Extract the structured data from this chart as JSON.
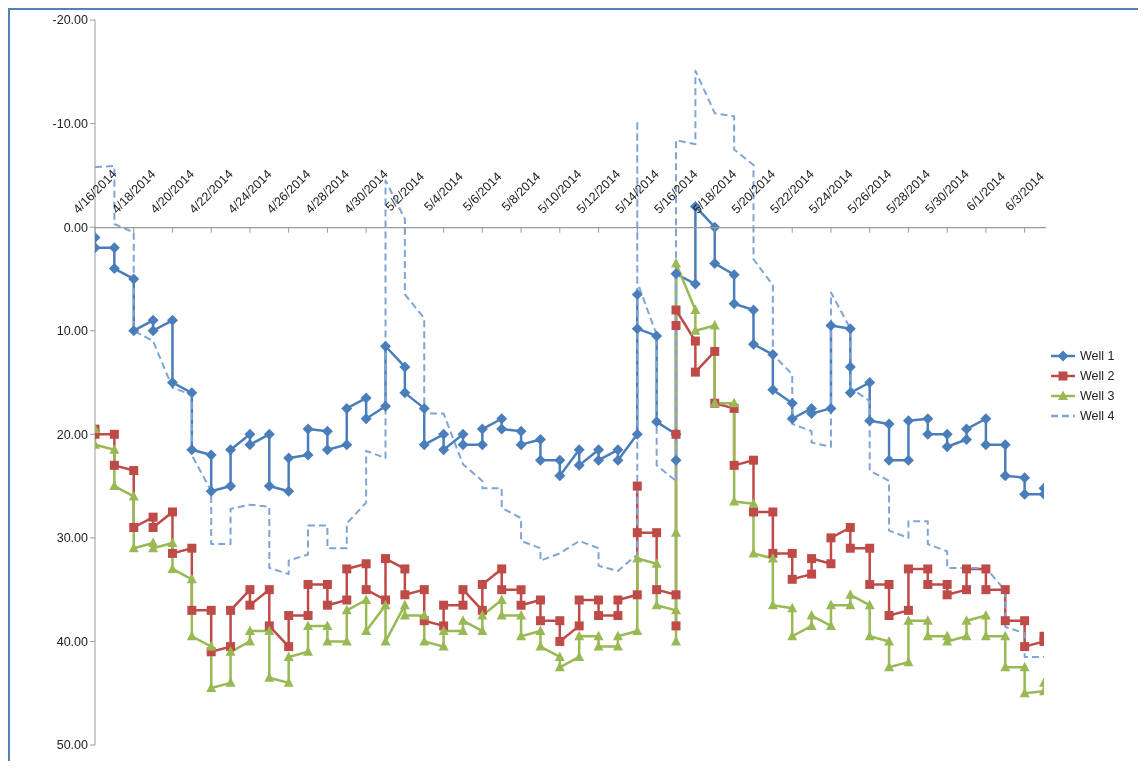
{
  "chart_data": {
    "type": "line",
    "xlim": [
      "2014-04-16",
      "2014-06-04"
    ],
    "xticks": [
      {
        "value": "2014-04-16",
        "label": "4/16/2014"
      },
      {
        "value": "2014-04-18",
        "label": "4/18/2014"
      },
      {
        "value": "2014-04-20",
        "label": "4/20/2014"
      },
      {
        "value": "2014-04-22",
        "label": "4/22/2014"
      },
      {
        "value": "2014-04-24",
        "label": "4/24/2014"
      },
      {
        "value": "2014-04-26",
        "label": "4/26/2014"
      },
      {
        "value": "2014-04-28",
        "label": "4/28/2014"
      },
      {
        "value": "2014-04-30",
        "label": "4/30/2014"
      },
      {
        "value": "2014-05-02",
        "label": "5/2/2014"
      },
      {
        "value": "2014-05-04",
        "label": "5/4/2014"
      },
      {
        "value": "2014-05-06",
        "label": "5/6/2014"
      },
      {
        "value": "2014-05-08",
        "label": "5/8/2014"
      },
      {
        "value": "2014-05-10",
        "label": "5/10/2014"
      },
      {
        "value": "2014-05-12",
        "label": "5/12/2014"
      },
      {
        "value": "2014-05-14",
        "label": "5/14/2014"
      },
      {
        "value": "2014-05-16",
        "label": "5/16/2014"
      },
      {
        "value": "2014-05-18",
        "label": "5/18/2014"
      },
      {
        "value": "2014-05-20",
        "label": "5/20/2014"
      },
      {
        "value": "2014-05-22",
        "label": "5/22/2014"
      },
      {
        "value": "2014-05-24",
        "label": "5/24/2014"
      },
      {
        "value": "2014-05-26",
        "label": "5/26/2014"
      },
      {
        "value": "2014-05-28",
        "label": "5/28/2014"
      },
      {
        "value": "2014-05-30",
        "label": "5/30/2014"
      },
      {
        "value": "2014-06-01",
        "label": "6/1/2014"
      },
      {
        "value": "2014-06-03",
        "label": "6/3/2014"
      }
    ],
    "ylim": [
      50,
      -20
    ],
    "yticks": [
      {
        "value": -20,
        "label": "-20.00"
      },
      {
        "value": -10,
        "label": "-10.00"
      },
      {
        "value": 0,
        "label": "0.00"
      },
      {
        "value": 10,
        "label": "10.00"
      },
      {
        "value": 20,
        "label": "20.00"
      },
      {
        "value": 30,
        "label": "30.00"
      },
      {
        "value": 40,
        "label": "40.00"
      },
      {
        "value": 50,
        "label": "50.00"
      }
    ],
    "grid": false,
    "legend": "right",
    "series": [
      {
        "name": "Well 1",
        "color": "#4a7ebb",
        "marker": "diamond",
        "line_style": "solid",
        "x": [
          "2014-04-16",
          "2014-04-16",
          "2014-04-17",
          "2014-04-17",
          "2014-04-18",
          "2014-04-18",
          "2014-04-19",
          "2014-04-19",
          "2014-04-20",
          "2014-04-20",
          "2014-04-21",
          "2014-04-21",
          "2014-04-22",
          "2014-04-22",
          "2014-04-23",
          "2014-04-23",
          "2014-04-24",
          "2014-04-24",
          "2014-04-25",
          "2014-04-25",
          "2014-04-26",
          "2014-04-26",
          "2014-04-27",
          "2014-04-27",
          "2014-04-28",
          "2014-04-28",
          "2014-04-29",
          "2014-04-29",
          "2014-04-30",
          "2014-04-30",
          "2014-05-01",
          "2014-05-01",
          "2014-05-02",
          "2014-05-02",
          "2014-05-03",
          "2014-05-03",
          "2014-05-04",
          "2014-05-04",
          "2014-05-05",
          "2014-05-05",
          "2014-05-06",
          "2014-05-06",
          "2014-05-07",
          "2014-05-07",
          "2014-05-08",
          "2014-05-08",
          "2014-05-09",
          "2014-05-09",
          "2014-05-10",
          "2014-05-10",
          "2014-05-11",
          "2014-05-11",
          "2014-05-12",
          "2014-05-12",
          "2014-05-13",
          "2014-05-13",
          "2014-05-14",
          "2014-05-14",
          "2014-05-14",
          "2014-05-15",
          "2014-05-15",
          "2014-05-16",
          "2014-05-16",
          "2014-05-16",
          "2014-05-17",
          "2014-05-17",
          "2014-05-18",
          "2014-05-18",
          "2014-05-19",
          "2014-05-19",
          "2014-05-20",
          "2014-05-20",
          "2014-05-21",
          "2014-05-21",
          "2014-05-22",
          "2014-05-22",
          "2014-05-23",
          "2014-05-23",
          "2014-05-24",
          "2014-05-24",
          "2014-05-25",
          "2014-05-25",
          "2014-05-25",
          "2014-05-26",
          "2014-05-26",
          "2014-05-27",
          "2014-05-27",
          "2014-05-28",
          "2014-05-28",
          "2014-05-29",
          "2014-05-29",
          "2014-05-30",
          "2014-05-30",
          "2014-05-31",
          "2014-05-31",
          "2014-06-01",
          "2014-06-01",
          "2014-06-02",
          "2014-06-02",
          "2014-06-03",
          "2014-06-03",
          "2014-06-04",
          "2014-06-04"
        ],
        "values": [
          1,
          2,
          2,
          4,
          5,
          10,
          9,
          10,
          9,
          15,
          16,
          21.5,
          22,
          25.5,
          25,
          21.5,
          20,
          21,
          20,
          25,
          25.5,
          22.3,
          22,
          19.5,
          19.7,
          21.5,
          21,
          17.5,
          16.5,
          18.5,
          17.3,
          11.5,
          13.5,
          16,
          17.5,
          21,
          20,
          21.5,
          20,
          21,
          21,
          19.5,
          18.5,
          19.5,
          19.7,
          21,
          20.5,
          22.5,
          22.5,
          24,
          21.5,
          23,
          21.5,
          22.5,
          21.5,
          22.5,
          20,
          6.5,
          9.8,
          10.5,
          18.8,
          20,
          22.5,
          4.5,
          5.5,
          -2,
          0,
          3.5,
          4.6,
          7.4,
          8,
          11.3,
          12.3,
          15.7,
          17,
          18.5,
          17.5,
          18,
          17.5,
          9.5,
          9.8,
          13.5,
          16,
          15,
          18.7,
          19,
          22.5,
          22.5,
          18.7,
          18.5,
          20,
          20,
          21.2,
          20.5,
          19.5,
          18.5,
          21,
          21,
          24,
          24.2,
          25.8,
          25.8,
          25.2
        ]
      },
      {
        "name": "Well 2",
        "color": "#be4b48",
        "marker": "square",
        "line_style": "solid",
        "x": [
          "2014-04-16",
          "2014-04-16",
          "2014-04-17",
          "2014-04-17",
          "2014-04-18",
          "2014-04-18",
          "2014-04-19",
          "2014-04-19",
          "2014-04-20",
          "2014-04-20",
          "2014-04-21",
          "2014-04-21",
          "2014-04-22",
          "2014-04-22",
          "2014-04-23",
          "2014-04-23",
          "2014-04-24",
          "2014-04-24",
          "2014-04-25",
          "2014-04-25",
          "2014-04-26",
          "2014-04-26",
          "2014-04-27",
          "2014-04-27",
          "2014-04-28",
          "2014-04-28",
          "2014-04-29",
          "2014-04-29",
          "2014-04-30",
          "2014-04-30",
          "2014-05-01",
          "2014-05-01",
          "2014-05-02",
          "2014-05-02",
          "2014-05-03",
          "2014-05-03",
          "2014-05-04",
          "2014-05-04",
          "2014-05-05",
          "2014-05-05",
          "2014-05-06",
          "2014-05-06",
          "2014-05-07",
          "2014-05-07",
          "2014-05-08",
          "2014-05-08",
          "2014-05-09",
          "2014-05-09",
          "2014-05-10",
          "2014-05-10",
          "2014-05-11",
          "2014-05-11",
          "2014-05-12",
          "2014-05-12",
          "2014-05-13",
          "2014-05-13",
          "2014-05-14",
          "2014-05-14",
          "2014-05-14",
          "2014-05-15",
          "2014-05-15",
          "2014-05-16",
          "2014-05-16",
          "2014-05-16",
          "2014-05-16",
          "2014-05-16",
          "2014-05-17",
          "2014-05-17",
          "2014-05-18",
          "2014-05-18",
          "2014-05-19",
          "2014-05-19",
          "2014-05-20",
          "2014-05-20",
          "2014-05-21",
          "2014-05-21",
          "2014-05-22",
          "2014-05-22",
          "2014-05-23",
          "2014-05-23",
          "2014-05-24",
          "2014-05-24",
          "2014-05-25",
          "2014-05-25",
          "2014-05-26",
          "2014-05-26",
          "2014-05-27",
          "2014-05-27",
          "2014-05-28",
          "2014-05-28",
          "2014-05-29",
          "2014-05-29",
          "2014-05-30",
          "2014-05-30",
          "2014-05-31",
          "2014-05-31",
          "2014-06-01",
          "2014-06-01",
          "2014-06-02",
          "2014-06-02",
          "2014-06-03",
          "2014-06-03",
          "2014-06-04",
          "2014-06-04"
        ],
        "values": [
          19.5,
          20,
          20,
          23,
          23.5,
          29,
          28,
          29,
          27.5,
          31.5,
          31,
          37,
          37,
          41,
          40.5,
          37,
          35,
          36.5,
          35,
          38.5,
          40.5,
          37.5,
          37.5,
          34.5,
          34.5,
          36.5,
          36,
          33,
          32.5,
          35,
          36,
          32,
          33,
          35.5,
          35,
          38,
          38.5,
          36.5,
          36.5,
          35,
          37,
          34.5,
          33,
          35,
          35,
          36.5,
          36,
          38,
          38,
          40,
          38.5,
          36,
          36,
          37.5,
          37.5,
          36,
          35.5,
          25,
          29.5,
          29.5,
          35,
          35.5,
          38.5,
          20,
          9.5,
          8,
          11,
          14,
          12,
          17,
          17.5,
          23,
          22.5,
          27.5,
          27.5,
          31.5,
          31.5,
          34,
          33.5,
          32,
          32.5,
          30,
          29,
          31,
          31,
          34.5,
          34.5,
          37.5,
          37,
          33,
          33,
          34.5,
          34.5,
          35.5,
          35,
          33,
          33,
          35,
          35,
          38,
          38,
          40.5,
          40,
          39.5
        ]
      },
      {
        "name": "Well 3",
        "color": "#98b954",
        "marker": "triangle",
        "line_style": "solid",
        "x": [
          "2014-04-16",
          "2014-04-16",
          "2014-04-17",
          "2014-04-17",
          "2014-04-18",
          "2014-04-18",
          "2014-04-19",
          "2014-04-19",
          "2014-04-20",
          "2014-04-20",
          "2014-04-21",
          "2014-04-21",
          "2014-04-22",
          "2014-04-22",
          "2014-04-23",
          "2014-04-23",
          "2014-04-24",
          "2014-04-24",
          "2014-04-25",
          "2014-04-25",
          "2014-04-26",
          "2014-04-26",
          "2014-04-27",
          "2014-04-27",
          "2014-04-28",
          "2014-04-28",
          "2014-04-29",
          "2014-04-29",
          "2014-04-30",
          "2014-04-30",
          "2014-05-01",
          "2014-05-01",
          "2014-05-02",
          "2014-05-02",
          "2014-05-03",
          "2014-05-03",
          "2014-05-04",
          "2014-05-04",
          "2014-05-05",
          "2014-05-05",
          "2014-05-06",
          "2014-05-06",
          "2014-05-07",
          "2014-05-07",
          "2014-05-08",
          "2014-05-08",
          "2014-05-09",
          "2014-05-09",
          "2014-05-10",
          "2014-05-10",
          "2014-05-11",
          "2014-05-11",
          "2014-05-12",
          "2014-05-12",
          "2014-05-13",
          "2014-05-13",
          "2014-05-14",
          "2014-05-14",
          "2014-05-15",
          "2014-05-15",
          "2014-05-16",
          "2014-05-16",
          "2014-05-16",
          "2014-05-16",
          "2014-05-17",
          "2014-05-17",
          "2014-05-18",
          "2014-05-18",
          "2014-05-19",
          "2014-05-19",
          "2014-05-20",
          "2014-05-20",
          "2014-05-21",
          "2014-05-21",
          "2014-05-22",
          "2014-05-22",
          "2014-05-23",
          "2014-05-23",
          "2014-05-24",
          "2014-05-24",
          "2014-05-25",
          "2014-05-25",
          "2014-05-26",
          "2014-05-26",
          "2014-05-27",
          "2014-05-27",
          "2014-05-28",
          "2014-05-28",
          "2014-05-29",
          "2014-05-29",
          "2014-05-30",
          "2014-05-30",
          "2014-05-31",
          "2014-05-31",
          "2014-06-01",
          "2014-06-01",
          "2014-06-02",
          "2014-06-02",
          "2014-06-03",
          "2014-06-03",
          "2014-06-04",
          "2014-06-04"
        ],
        "values": [
          19.5,
          21,
          21.5,
          25,
          26,
          31,
          30.5,
          31,
          30.5,
          33,
          34,
          39.5,
          40.5,
          44.5,
          44,
          41,
          40,
          39,
          39,
          43.5,
          44,
          41.5,
          41,
          38.5,
          38.5,
          40,
          40,
          37,
          36,
          39,
          36.5,
          40,
          36.5,
          37.5,
          37.5,
          40,
          40.5,
          39,
          39,
          38,
          39,
          37.5,
          36,
          37.5,
          37.5,
          39.5,
          39,
          40.5,
          41.5,
          42.5,
          41.5,
          39.5,
          39.5,
          40.5,
          40.5,
          39.5,
          39,
          32,
          32.5,
          36.5,
          37,
          40,
          29.5,
          3.5,
          8,
          10,
          9.5,
          17,
          17,
          26.5,
          26.7,
          31.5,
          32,
          36.5,
          36.8,
          39.5,
          38.5,
          37.5,
          38.5,
          36.5,
          36.5,
          35.5,
          36.5,
          39.5,
          40,
          42.5,
          42,
          38,
          38,
          39.5,
          39.5,
          40,
          39.5,
          38,
          37.5,
          39.5,
          39.5,
          42.5,
          42.5,
          45,
          44.8,
          44
        ]
      },
      {
        "name": "Well 4",
        "color": "#7ea5d6",
        "marker": "none",
        "line_style": "dashed",
        "x": [
          "2014-04-16",
          "2014-04-17",
          "2014-04-17",
          "2014-04-18",
          "2014-04-18",
          "2014-04-19",
          "2014-04-20",
          "2014-04-21",
          "2014-04-21",
          "2014-04-22",
          "2014-04-22",
          "2014-04-23",
          "2014-04-23",
          "2014-04-24",
          "2014-04-25",
          "2014-04-25",
          "2014-04-26",
          "2014-04-26",
          "2014-04-27",
          "2014-04-27",
          "2014-04-28",
          "2014-04-28",
          "2014-04-29",
          "2014-04-29",
          "2014-04-30",
          "2014-04-30",
          "2014-05-01",
          "2014-05-01",
          "2014-05-02",
          "2014-05-02",
          "2014-05-03",
          "2014-05-03",
          "2014-05-04",
          "2014-05-05",
          "2014-05-06",
          "2014-05-06",
          "2014-05-07",
          "2014-05-07",
          "2014-05-08",
          "2014-05-08",
          "2014-05-09",
          "2014-05-09",
          "2014-05-10",
          "2014-05-11",
          "2014-05-12",
          "2014-05-12",
          "2014-05-13",
          "2014-05-14",
          "2014-05-14",
          "2014-05-14",
          "2014-05-15",
          "2014-05-15",
          "2014-05-16",
          "2014-05-16",
          "2014-05-17",
          "2014-05-17",
          "2014-05-18",
          "2014-05-19",
          "2014-05-19",
          "2014-05-20",
          "2014-05-20",
          "2014-05-21",
          "2014-05-21",
          "2014-05-22",
          "2014-05-22",
          "2014-05-23",
          "2014-05-23",
          "2014-05-24",
          "2014-05-24",
          "2014-05-25",
          "2014-05-25",
          "2014-05-26",
          "2014-05-26",
          "2014-05-27",
          "2014-05-27",
          "2014-05-28",
          "2014-05-28",
          "2014-05-29",
          "2014-05-29",
          "2014-05-30",
          "2014-05-30",
          "2014-06-01",
          "2014-06-02",
          "2014-06-02",
          "2014-06-03",
          "2014-06-03",
          "2014-06-04"
        ],
        "values": [
          -5.8,
          -5.9,
          -0.3,
          0.5,
          10,
          11,
          15.5,
          16.2,
          22,
          25.5,
          30.6,
          30.6,
          27.2,
          26.8,
          27,
          32.9,
          33.5,
          32.2,
          31.6,
          28.8,
          28.8,
          31,
          31,
          28.6,
          26.6,
          21.6,
          22.3,
          -4.5,
          -0.8,
          6.5,
          8.8,
          18,
          18,
          22.9,
          24.5,
          25.2,
          25.2,
          27.1,
          28.1,
          30.3,
          31,
          32.2,
          31.5,
          30.3,
          31,
          32.7,
          33.2,
          31.6,
          -10.3,
          5.3,
          10.4,
          23,
          24.5,
          -8.4,
          -8,
          -15.1,
          -11,
          -10.7,
          -7.5,
          -6,
          3.1,
          5.6,
          12.3,
          14.2,
          19,
          19.7,
          20.8,
          21.2,
          6.3,
          9.8,
          15.5,
          16.8,
          23.5,
          24.5,
          29.3,
          30,
          28.4,
          28.4,
          30.6,
          31.3,
          32.9,
          32.9,
          35.1,
          38.6,
          39.2,
          41.5,
          41.5
        ]
      }
    ]
  }
}
